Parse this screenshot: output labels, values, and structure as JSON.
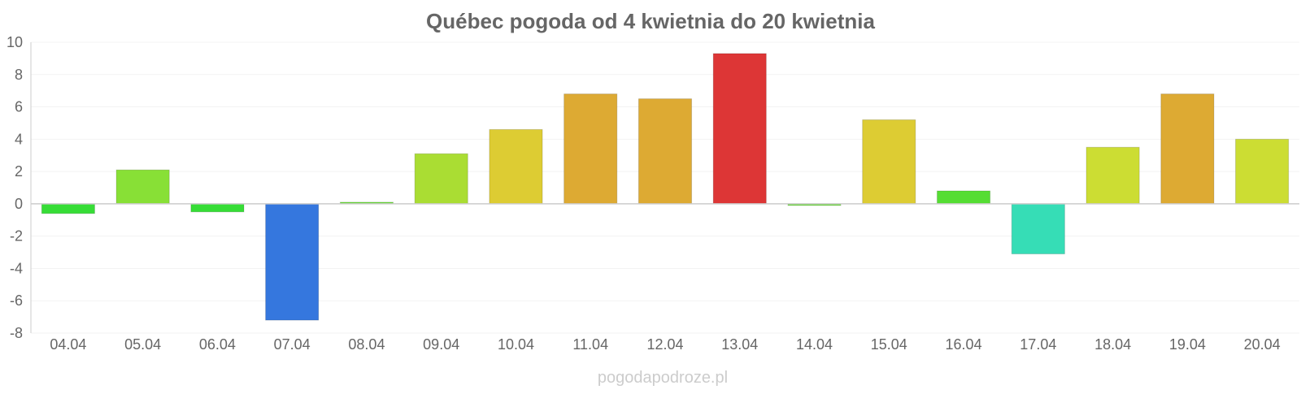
{
  "chart_data": {
    "type": "bar",
    "title": "Québec pogoda od 4 kwietnia do 20 kwietnia",
    "xlabel": "",
    "ylabel": "",
    "ylim": [
      -8,
      10
    ],
    "yticks": [
      10,
      8,
      6,
      4,
      2,
      0,
      -2,
      -4,
      -6,
      -8
    ],
    "grid": true,
    "categories": [
      "04.04",
      "05.04",
      "06.04",
      "07.04",
      "08.04",
      "09.04",
      "10.04",
      "11.04",
      "12.04",
      "13.04",
      "14.04",
      "15.04",
      "16.04",
      "17.04",
      "18.04",
      "19.04",
      "20.04"
    ],
    "values": [
      -0.6,
      2.1,
      -0.5,
      -7.2,
      0.1,
      3.1,
      4.6,
      6.8,
      6.5,
      9.3,
      -0.1,
      5.2,
      0.8,
      -3.1,
      3.5,
      6.8,
      4.0
    ],
    "colors": [
      "#36dd36",
      "#88e036",
      "#36dd36",
      "#3577de",
      "#66dd33",
      "#aadd33",
      "#ddcc33",
      "#ddaa33",
      "#ddaa33",
      "#dd3636",
      "#66dd33",
      "#ddcc33",
      "#55dd33",
      "#36ddb6",
      "#ccdd33",
      "#ddaa33",
      "#ccdd33"
    ]
  },
  "watermark": "pogodapodroze.pl"
}
